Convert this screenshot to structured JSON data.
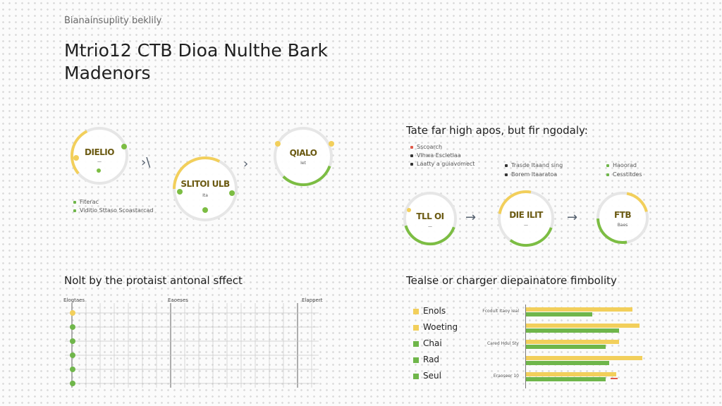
{
  "header": {
    "eyebrow": "Bianainsuplity beklily",
    "title": "Mtrio12 CTB Dioa Nulthe Bark Madenors"
  },
  "left_flow": {
    "nodes": [
      {
        "label": "DIELIO",
        "sub": "—",
        "accent": "#e8c53a"
      },
      {
        "label": "SLITOI ULB",
        "sub": "Ita",
        "accent": "#e8c53a"
      },
      {
        "label": "QIALO",
        "sub": "Iet",
        "accent": "#7cbd43"
      }
    ],
    "arrows": [
      "›\\",
      "›"
    ],
    "legend": [
      "Fiterac",
      "Viditio Sttaso Scoastarcad"
    ]
  },
  "right_flow": {
    "heading": "Tate far high apos, but fir ngodaly:",
    "legend_col1": [
      "Sscoarch",
      "Vlhwa Escletlaa",
      "Laatty a guiavomect"
    ],
    "legend_col2": [
      "Trasde Itaand sing",
      "Borem Itaaratoa"
    ],
    "legend_col3": [
      "Haoorad",
      "Cesstitdes"
    ],
    "nodes": [
      {
        "label": "TLL OI",
        "sub": "—",
        "accent": "#7cbd43"
      },
      {
        "label": "DIE ILIT",
        "sub": "—",
        "accent": "#e8c53a"
      },
      {
        "label": "FTB",
        "sub": "Baes",
        "accent": "#e8c53a"
      }
    ],
    "arrows": [
      "→",
      "→"
    ]
  },
  "bottom_left": {
    "heading": "Nolt by the protaist antonal sffect",
    "col_headers": [
      "Elogtaes",
      "Eaoeses",
      "Elappert"
    ],
    "rows": 6
  },
  "bottom_right": {
    "heading": "Tealse or charger diepainatore fimbolity",
    "mid_labels": [
      "Fcodult Itaoy Ieal",
      "Cared Hdul Sty",
      "Eraoseer 10"
    ]
  },
  "colors": {
    "yellow": "#f2cf5b",
    "green": "#6fb64a",
    "red": "#e05a4a",
    "ring": "#e6e6e6"
  },
  "chart_data": {
    "type": "bar",
    "orientation": "horizontal",
    "categories": [
      "Enols",
      "Woeting",
      "Chai",
      "Rad",
      "Seul"
    ],
    "series": [
      {
        "values": [
          160,
          170,
          140,
          175,
          135
        ]
      },
      {
        "values": [
          100,
          140,
          120,
          125,
          120
        ]
      }
    ],
    "xlim": [
      0,
      180
    ],
    "grid": false
  }
}
